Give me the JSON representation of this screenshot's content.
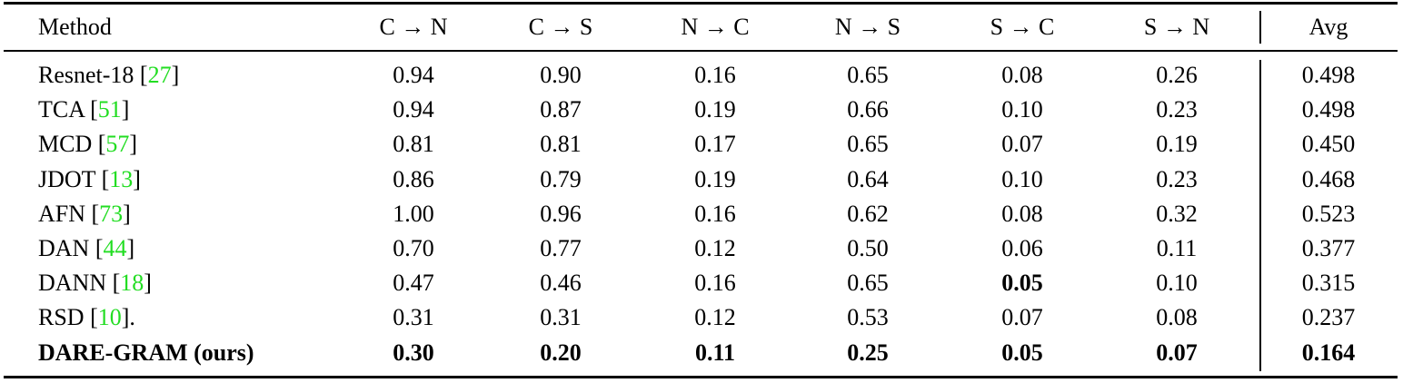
{
  "table": {
    "header": [
      "Method",
      "C → N",
      "C → S",
      "N → C",
      "N → S",
      "S → C",
      "S → N",
      "Avg"
    ],
    "rows": [
      {
        "method": {
          "text": "Resnet-18 [",
          "ref": "27",
          "tail": "]"
        },
        "cells": [
          "0.94",
          "0.90",
          "0.16",
          "0.65",
          "0.08",
          "0.26",
          "0.498"
        ],
        "bold": []
      },
      {
        "method": {
          "text": "TCA [",
          "ref": "51",
          "tail": "]"
        },
        "cells": [
          "0.94",
          "0.87",
          "0.19",
          "0.66",
          "0.10",
          "0.23",
          "0.498"
        ],
        "bold": []
      },
      {
        "method": {
          "text": "MCD [",
          "ref": "57",
          "tail": "]"
        },
        "cells": [
          "0.81",
          "0.81",
          "0.17",
          "0.65",
          "0.07",
          "0.19",
          "0.450"
        ],
        "bold": []
      },
      {
        "method": {
          "text": "JDOT [",
          "ref": "13",
          "tail": "]"
        },
        "cells": [
          "0.86",
          "0.79",
          "0.19",
          "0.64",
          "0.10",
          "0.23",
          "0.468"
        ],
        "bold": []
      },
      {
        "method": {
          "text": "AFN [",
          "ref": "73",
          "tail": "]"
        },
        "cells": [
          "1.00",
          "0.96",
          "0.16",
          "0.62",
          "0.08",
          "0.32",
          "0.523"
        ],
        "bold": []
      },
      {
        "method": {
          "text": "DAN [",
          "ref": "44",
          "tail": "]"
        },
        "cells": [
          "0.70",
          "0.77",
          "0.12",
          "0.50",
          "0.06",
          "0.11",
          "0.377"
        ],
        "bold": []
      },
      {
        "method": {
          "text": "DANN [",
          "ref": "18",
          "tail": "]"
        },
        "cells": [
          "0.47",
          "0.46",
          "0.16",
          "0.65",
          "0.05",
          "0.10",
          "0.315"
        ],
        "bold": [
          5
        ]
      },
      {
        "method": {
          "text": "RSD [",
          "ref": "10",
          "tail": "]."
        },
        "cells": [
          "0.31",
          "0.31",
          "0.12",
          "0.53",
          "0.07",
          "0.08",
          "0.237"
        ],
        "bold": []
      },
      {
        "method": {
          "text": "DARE-GRAM (ours)"
        },
        "cells": [
          "0.30",
          "0.20",
          "0.11",
          "0.25",
          "0.05",
          "0.07",
          "0.164"
        ],
        "bold": [
          0,
          1,
          2,
          3,
          4,
          5,
          6,
          7
        ]
      }
    ]
  }
}
